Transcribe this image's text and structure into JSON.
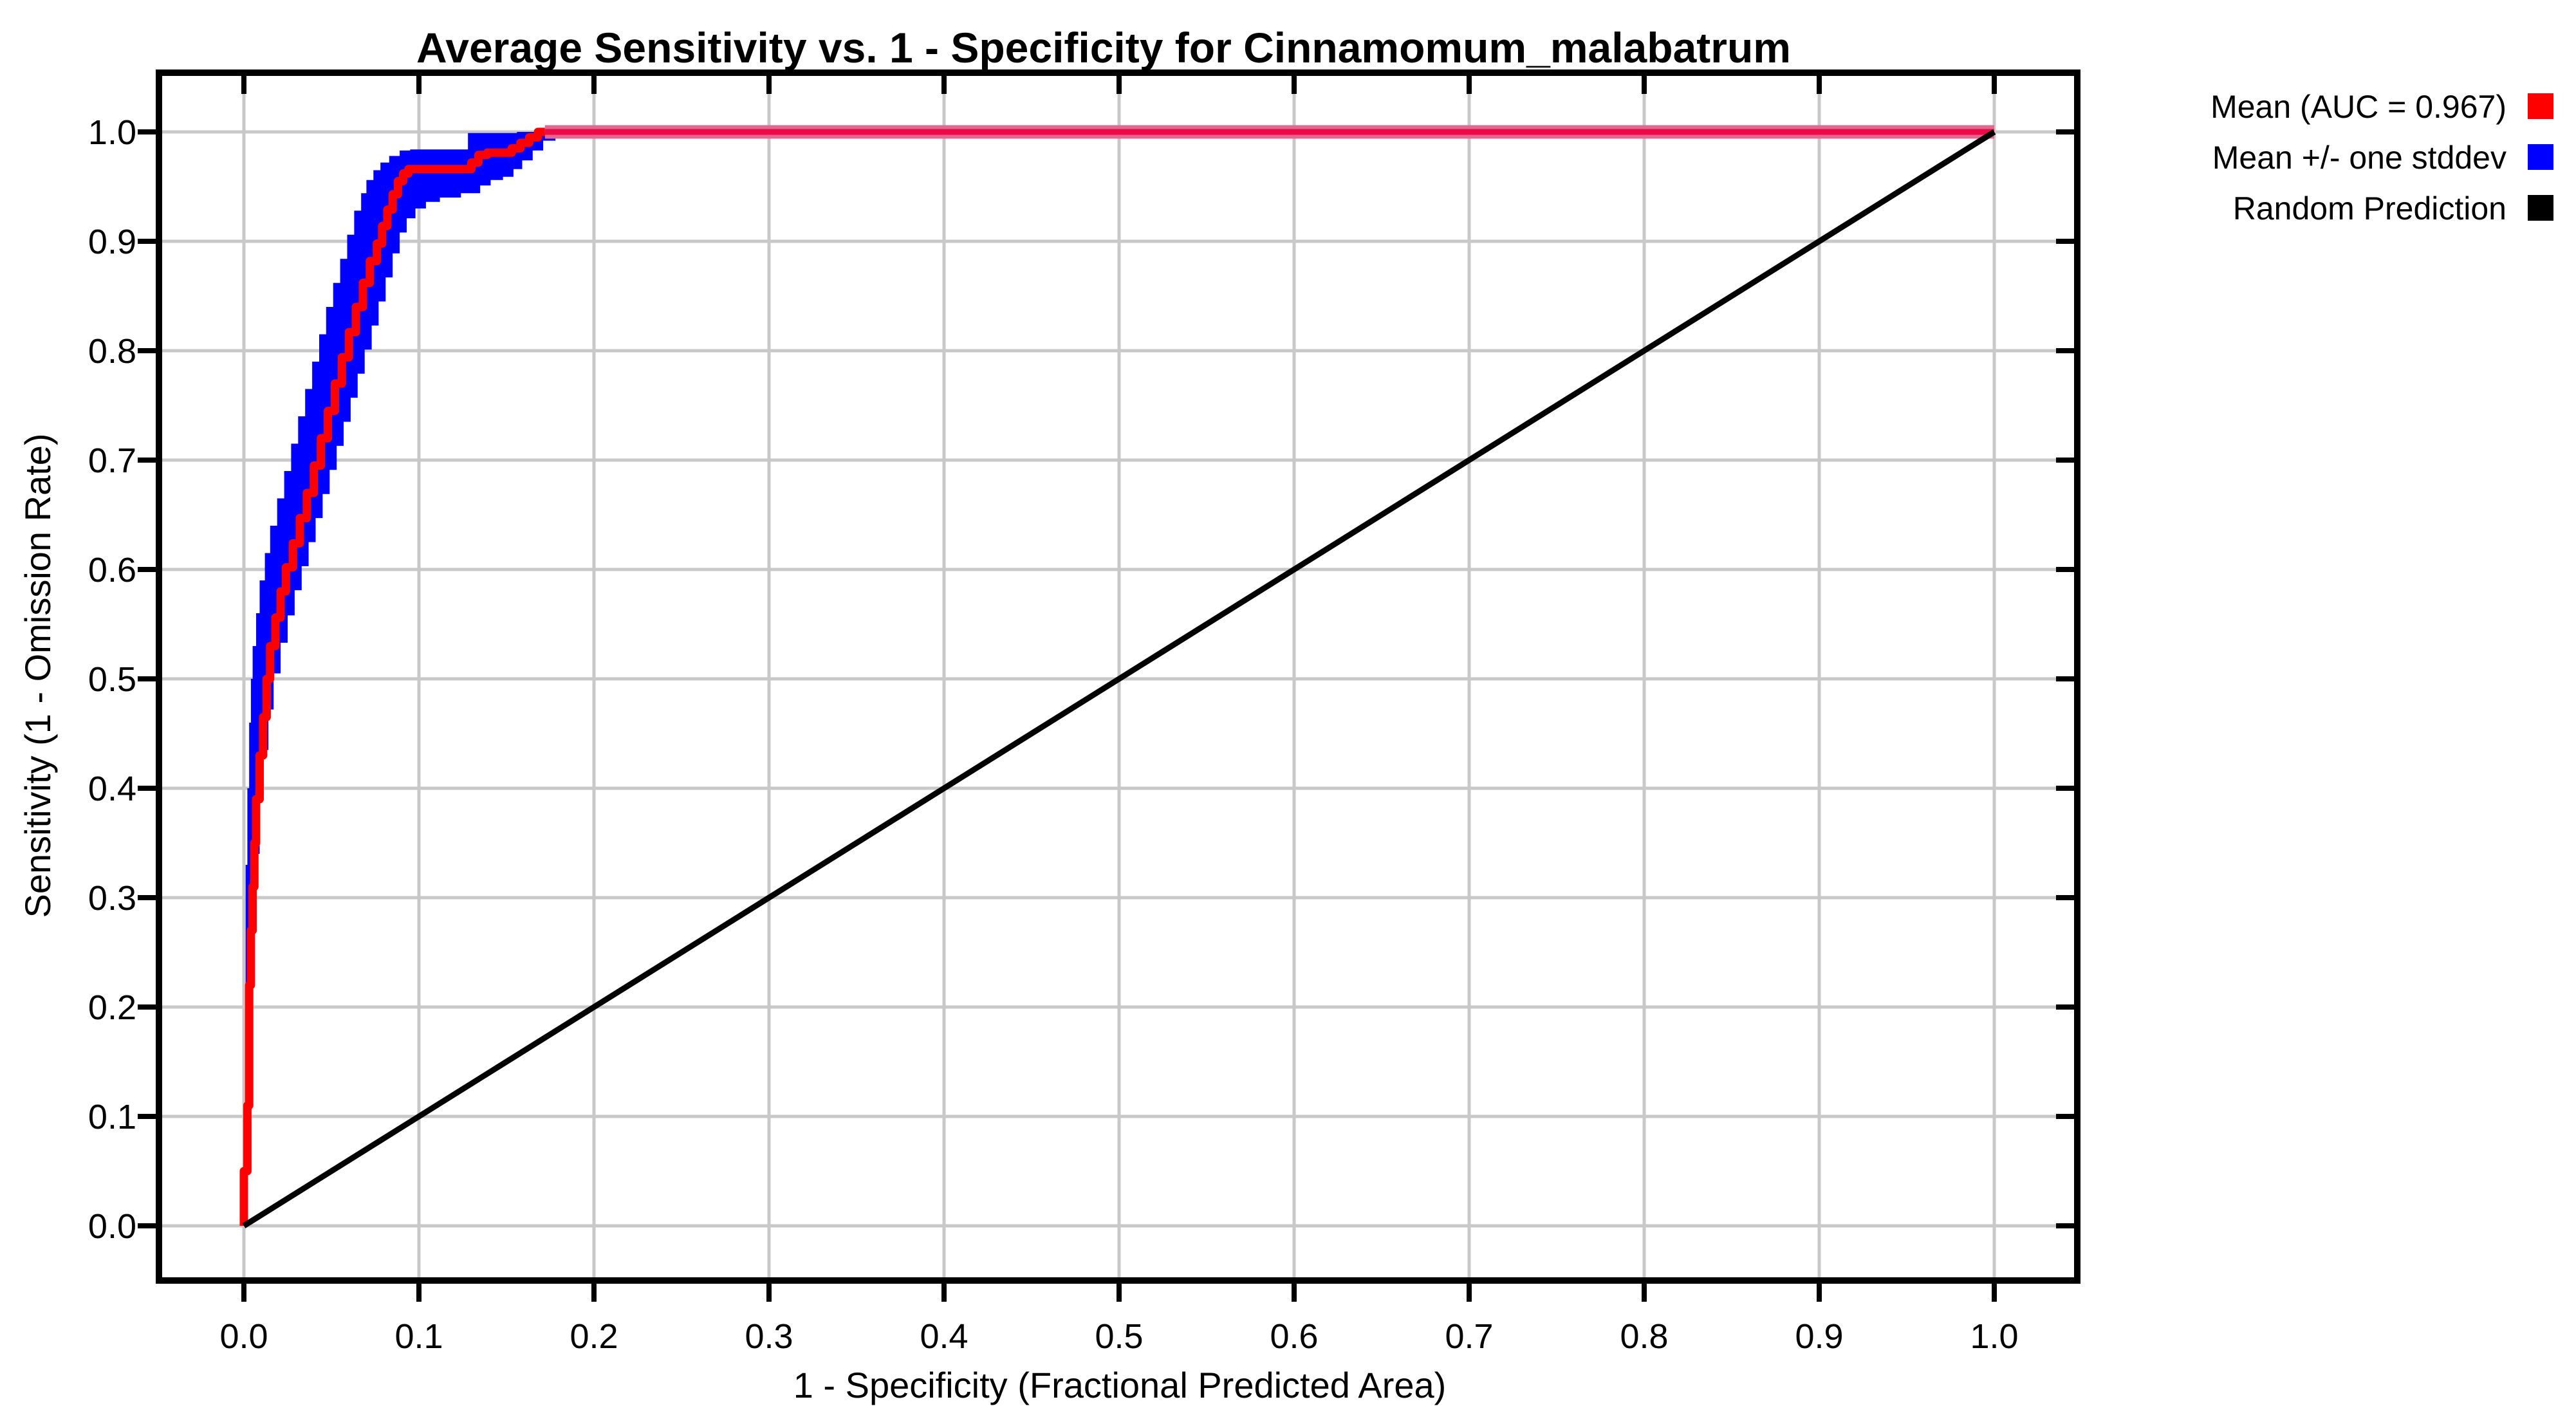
{
  "page": {
    "background": "#ffffff"
  },
  "chart_data": {
    "type": "line",
    "title": "Average Sensitivity vs. 1 - Specificity for Cinnamomum_malabatrum",
    "xlabel": "1 - Specificity (Fractional Predicted Area)",
    "ylabel": "Sensitivity (1 - Omission Rate)",
    "xlim": [
      -0.049,
      1.047
    ],
    "ylim": [
      -0.05,
      1.054
    ],
    "xticks": [
      0.0,
      0.1,
      0.2,
      0.3,
      0.4,
      0.5,
      0.6,
      0.7,
      0.8,
      0.9,
      1.0
    ],
    "xtick_labels": [
      "0.0",
      "0.1",
      "0.2",
      "0.3",
      "0.4",
      "0.5",
      "0.6",
      "0.7",
      "0.8",
      "0.9",
      "1.0"
    ],
    "yticks": [
      0.0,
      0.1,
      0.2,
      0.3,
      0.4,
      0.5,
      0.6,
      0.7,
      0.8,
      0.9,
      1.0
    ],
    "ytick_labels": [
      "0.0",
      "0.1",
      "0.2",
      "0.3",
      "0.4",
      "0.5",
      "0.6",
      "0.7",
      "0.8",
      "0.9",
      "1.0"
    ],
    "grid": true,
    "grid_color": "#c8c8c8",
    "auc": 0.967,
    "legend": {
      "position": "top-right-outside",
      "items": [
        {
          "label": "Mean (AUC = 0.967)",
          "color": "#ff0000"
        },
        {
          "label": "Mean +/- one stddev",
          "color": "#0000ff"
        },
        {
          "label": "Random Prediction",
          "color": "#000000"
        }
      ]
    },
    "series": [
      {
        "name": "Mean (AUC = 0.967)",
        "type": "line",
        "stepped": true,
        "color": "#ff0000",
        "width": 13,
        "points": [
          [
            0.0,
            0.0
          ],
          [
            0.002,
            0.05
          ],
          [
            0.003,
            0.11
          ],
          [
            0.003,
            0.17
          ],
          [
            0.004,
            0.22
          ],
          [
            0.005,
            0.27
          ],
          [
            0.006,
            0.31
          ],
          [
            0.007,
            0.35
          ],
          [
            0.009,
            0.39
          ],
          [
            0.011,
            0.43
          ],
          [
            0.013,
            0.465
          ],
          [
            0.015,
            0.5
          ],
          [
            0.018,
            0.53
          ],
          [
            0.021,
            0.556
          ],
          [
            0.024,
            0.58
          ],
          [
            0.028,
            0.602
          ],
          [
            0.032,
            0.624
          ],
          [
            0.036,
            0.647
          ],
          [
            0.04,
            0.67
          ],
          [
            0.044,
            0.695
          ],
          [
            0.048,
            0.72
          ],
          [
            0.052,
            0.745
          ],
          [
            0.056,
            0.77
          ],
          [
            0.06,
            0.794
          ],
          [
            0.064,
            0.817
          ],
          [
            0.068,
            0.84
          ],
          [
            0.072,
            0.862
          ],
          [
            0.076,
            0.882
          ],
          [
            0.079,
            0.898
          ],
          [
            0.082,
            0.914
          ],
          [
            0.085,
            0.929
          ],
          [
            0.088,
            0.943
          ],
          [
            0.091,
            0.955
          ],
          [
            0.094,
            0.962
          ],
          [
            0.098,
            0.966
          ],
          [
            0.13,
            0.966
          ],
          [
            0.134,
            0.972
          ],
          [
            0.139,
            0.979
          ],
          [
            0.143,
            0.981
          ],
          [
            0.153,
            0.981
          ],
          [
            0.158,
            0.985
          ],
          [
            0.163,
            0.99
          ],
          [
            0.168,
            0.995
          ],
          [
            0.172,
            1.0
          ]
        ],
        "plateau": {
          "points": [
            [
              0.172,
              1.0
            ],
            [
              1.0,
              1.0
            ]
          ],
          "core_color": "#ec0a47",
          "core_width": 9,
          "halo_color": "#e1688f",
          "halo_width": 21
        }
      },
      {
        "name": "Mean +/- one stddev",
        "type": "band",
        "stepped": true,
        "color": "#0000ff",
        "upper": [
          [
            0.0,
            0.0
          ],
          [
            0.001,
            0.1
          ],
          [
            0.001,
            0.25
          ],
          [
            0.002,
            0.33
          ],
          [
            0.003,
            0.4
          ],
          [
            0.004,
            0.46
          ],
          [
            0.005,
            0.5
          ],
          [
            0.007,
            0.53
          ],
          [
            0.009,
            0.56
          ],
          [
            0.012,
            0.59
          ],
          [
            0.015,
            0.615
          ],
          [
            0.019,
            0.64
          ],
          [
            0.023,
            0.665
          ],
          [
            0.027,
            0.69
          ],
          [
            0.031,
            0.715
          ],
          [
            0.035,
            0.74
          ],
          [
            0.039,
            0.765
          ],
          [
            0.043,
            0.79
          ],
          [
            0.047,
            0.815
          ],
          [
            0.051,
            0.84
          ],
          [
            0.055,
            0.862
          ],
          [
            0.059,
            0.884
          ],
          [
            0.063,
            0.906
          ],
          [
            0.067,
            0.928
          ],
          [
            0.07,
            0.944
          ],
          [
            0.074,
            0.956
          ],
          [
            0.078,
            0.965
          ],
          [
            0.083,
            0.972
          ],
          [
            0.089,
            0.978
          ],
          [
            0.095,
            0.983
          ],
          [
            0.103,
            0.984
          ],
          [
            0.128,
            0.984
          ],
          [
            0.131,
            0.999
          ],
          [
            0.156,
            0.999
          ],
          [
            0.161,
            1.0
          ],
          [
            0.172,
            1.0
          ]
        ],
        "lower": [
          [
            0.0,
            0.0
          ],
          [
            0.003,
            0.07
          ],
          [
            0.004,
            0.14
          ],
          [
            0.005,
            0.21
          ],
          [
            0.007,
            0.28
          ],
          [
            0.009,
            0.34
          ],
          [
            0.011,
            0.39
          ],
          [
            0.014,
            0.435
          ],
          [
            0.017,
            0.472
          ],
          [
            0.021,
            0.505
          ],
          [
            0.025,
            0.533
          ],
          [
            0.029,
            0.558
          ],
          [
            0.033,
            0.581
          ],
          [
            0.037,
            0.603
          ],
          [
            0.041,
            0.625
          ],
          [
            0.045,
            0.647
          ],
          [
            0.049,
            0.669
          ],
          [
            0.053,
            0.691
          ],
          [
            0.057,
            0.713
          ],
          [
            0.061,
            0.735
          ],
          [
            0.065,
            0.757
          ],
          [
            0.069,
            0.779
          ],
          [
            0.073,
            0.801
          ],
          [
            0.077,
            0.823
          ],
          [
            0.081,
            0.845
          ],
          [
            0.085,
            0.867
          ],
          [
            0.089,
            0.889
          ],
          [
            0.093,
            0.908
          ],
          [
            0.098,
            0.921
          ],
          [
            0.104,
            0.93
          ],
          [
            0.112,
            0.936
          ],
          [
            0.124,
            0.94
          ],
          [
            0.135,
            0.944
          ],
          [
            0.141,
            0.951
          ],
          [
            0.148,
            0.956
          ],
          [
            0.154,
            0.959
          ],
          [
            0.159,
            0.966
          ],
          [
            0.165,
            0.974
          ],
          [
            0.171,
            0.983
          ],
          [
            0.178,
            0.992
          ],
          [
            0.185,
            1.0
          ]
        ]
      },
      {
        "name": "Random Prediction",
        "type": "line",
        "stepped": false,
        "color": "#000000",
        "width": 9,
        "points": [
          [
            0.0,
            0.0
          ],
          [
            1.0,
            1.0
          ]
        ]
      }
    ]
  },
  "style": {
    "axis_color": "#000000",
    "border_width": 10,
    "tick_length": 33,
    "tick_width": 8,
    "gridline_width": 5
  }
}
